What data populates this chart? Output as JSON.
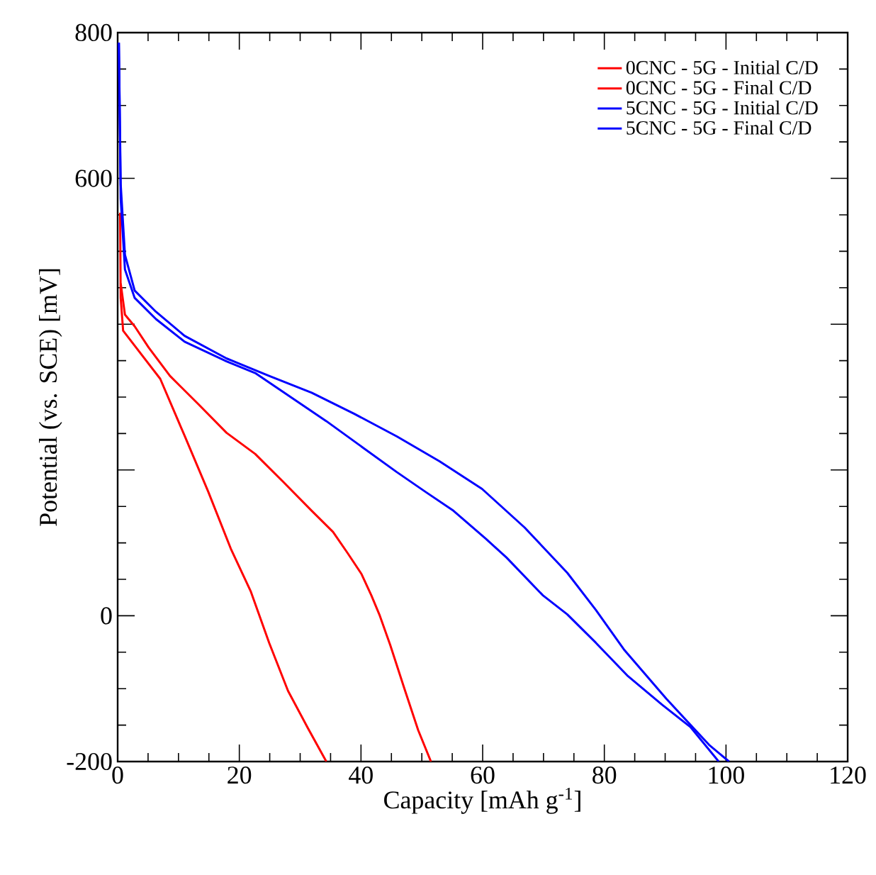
{
  "chart_data": {
    "type": "line",
    "xlabel": "Capacity [mAh g$^{-1}$]",
    "ylabel": "Potential (vs. SCE) [mV]",
    "xlim": [
      0,
      120
    ],
    "ylim": [
      -200,
      800
    ],
    "xticks": [
      0,
      20,
      40,
      60,
      80,
      100,
      120
    ],
    "yticks": [
      -200,
      0,
      {
        "value": 200,
        "label": null
      },
      {
        "value": 400,
        "label": null
      },
      600,
      800
    ],
    "grid": false,
    "legend": "top right",
    "marker": "none",
    "line_style": "solid",
    "series": [
      {
        "name": "0CNC - 5G - Initial C/D",
        "color": "#ff0000",
        "x": [
          0.5,
          1.2,
          2.8,
          5.1,
          8.6,
          13.3,
          17.9,
          22.6,
          27.3,
          31.9,
          35.4,
          37.8,
          40.1,
          41.7,
          43.1,
          44.8,
          47.1,
          49.4,
          51.5
        ],
        "values": [
          456,
          413,
          397,
          368,
          329,
          290,
          251,
          222,
          183,
          144,
          115,
          86,
          57,
          28,
          0,
          -40,
          -99,
          -157,
          -200
        ]
      },
      {
        "name": "0CNC - 5G - Final C/D",
        "color": "#ff0000",
        "x": [
          0.4,
          0.5,
          0.9,
          7.0,
          11.0,
          14.9,
          18.6,
          21.9,
          24.9,
          28.0,
          31.2,
          34.3
        ],
        "values": [
          553,
          436,
          391,
          325,
          247,
          170,
          92,
          33,
          -37,
          -103,
          -153,
          -200
        ]
      },
      {
        "name": "5CNC - 5G - Initial C/D",
        "color": "#0000ff",
        "x": [
          0.2,
          0.5,
          1.2,
          2.8,
          6.3,
          11.0,
          17.9,
          24.9,
          31.9,
          38.9,
          45.9,
          52.9,
          59.9,
          66.9,
          73.9,
          78.6,
          83.2,
          90.2,
          97.2,
          100.5
        ],
        "values": [
          786,
          592,
          495,
          446,
          417,
          384,
          353,
          329,
          306,
          277,
          246,
          212,
          174,
          121,
          59,
          8,
          -46,
          -114,
          -177,
          -200
        ]
      },
      {
        "name": "5CNC - 5G - Final C/D",
        "color": "#0000ff",
        "x": [
          0.2,
          0.5,
          1.2,
          2.8,
          6.3,
          11.0,
          17.9,
          22.6,
          34.3,
          45.9,
          50.6,
          55.2,
          60.6,
          63.9,
          69.9,
          73.9,
          78.6,
          83.9,
          89.5,
          94.2,
          98.8
        ],
        "values": [
          786,
          572,
          475,
          436,
          407,
          376,
          349,
          333,
          267,
          197,
          170,
          144,
          105,
          80,
          28,
          2,
          -37,
          -83,
          -122,
          -153,
          -200
        ]
      }
    ]
  }
}
